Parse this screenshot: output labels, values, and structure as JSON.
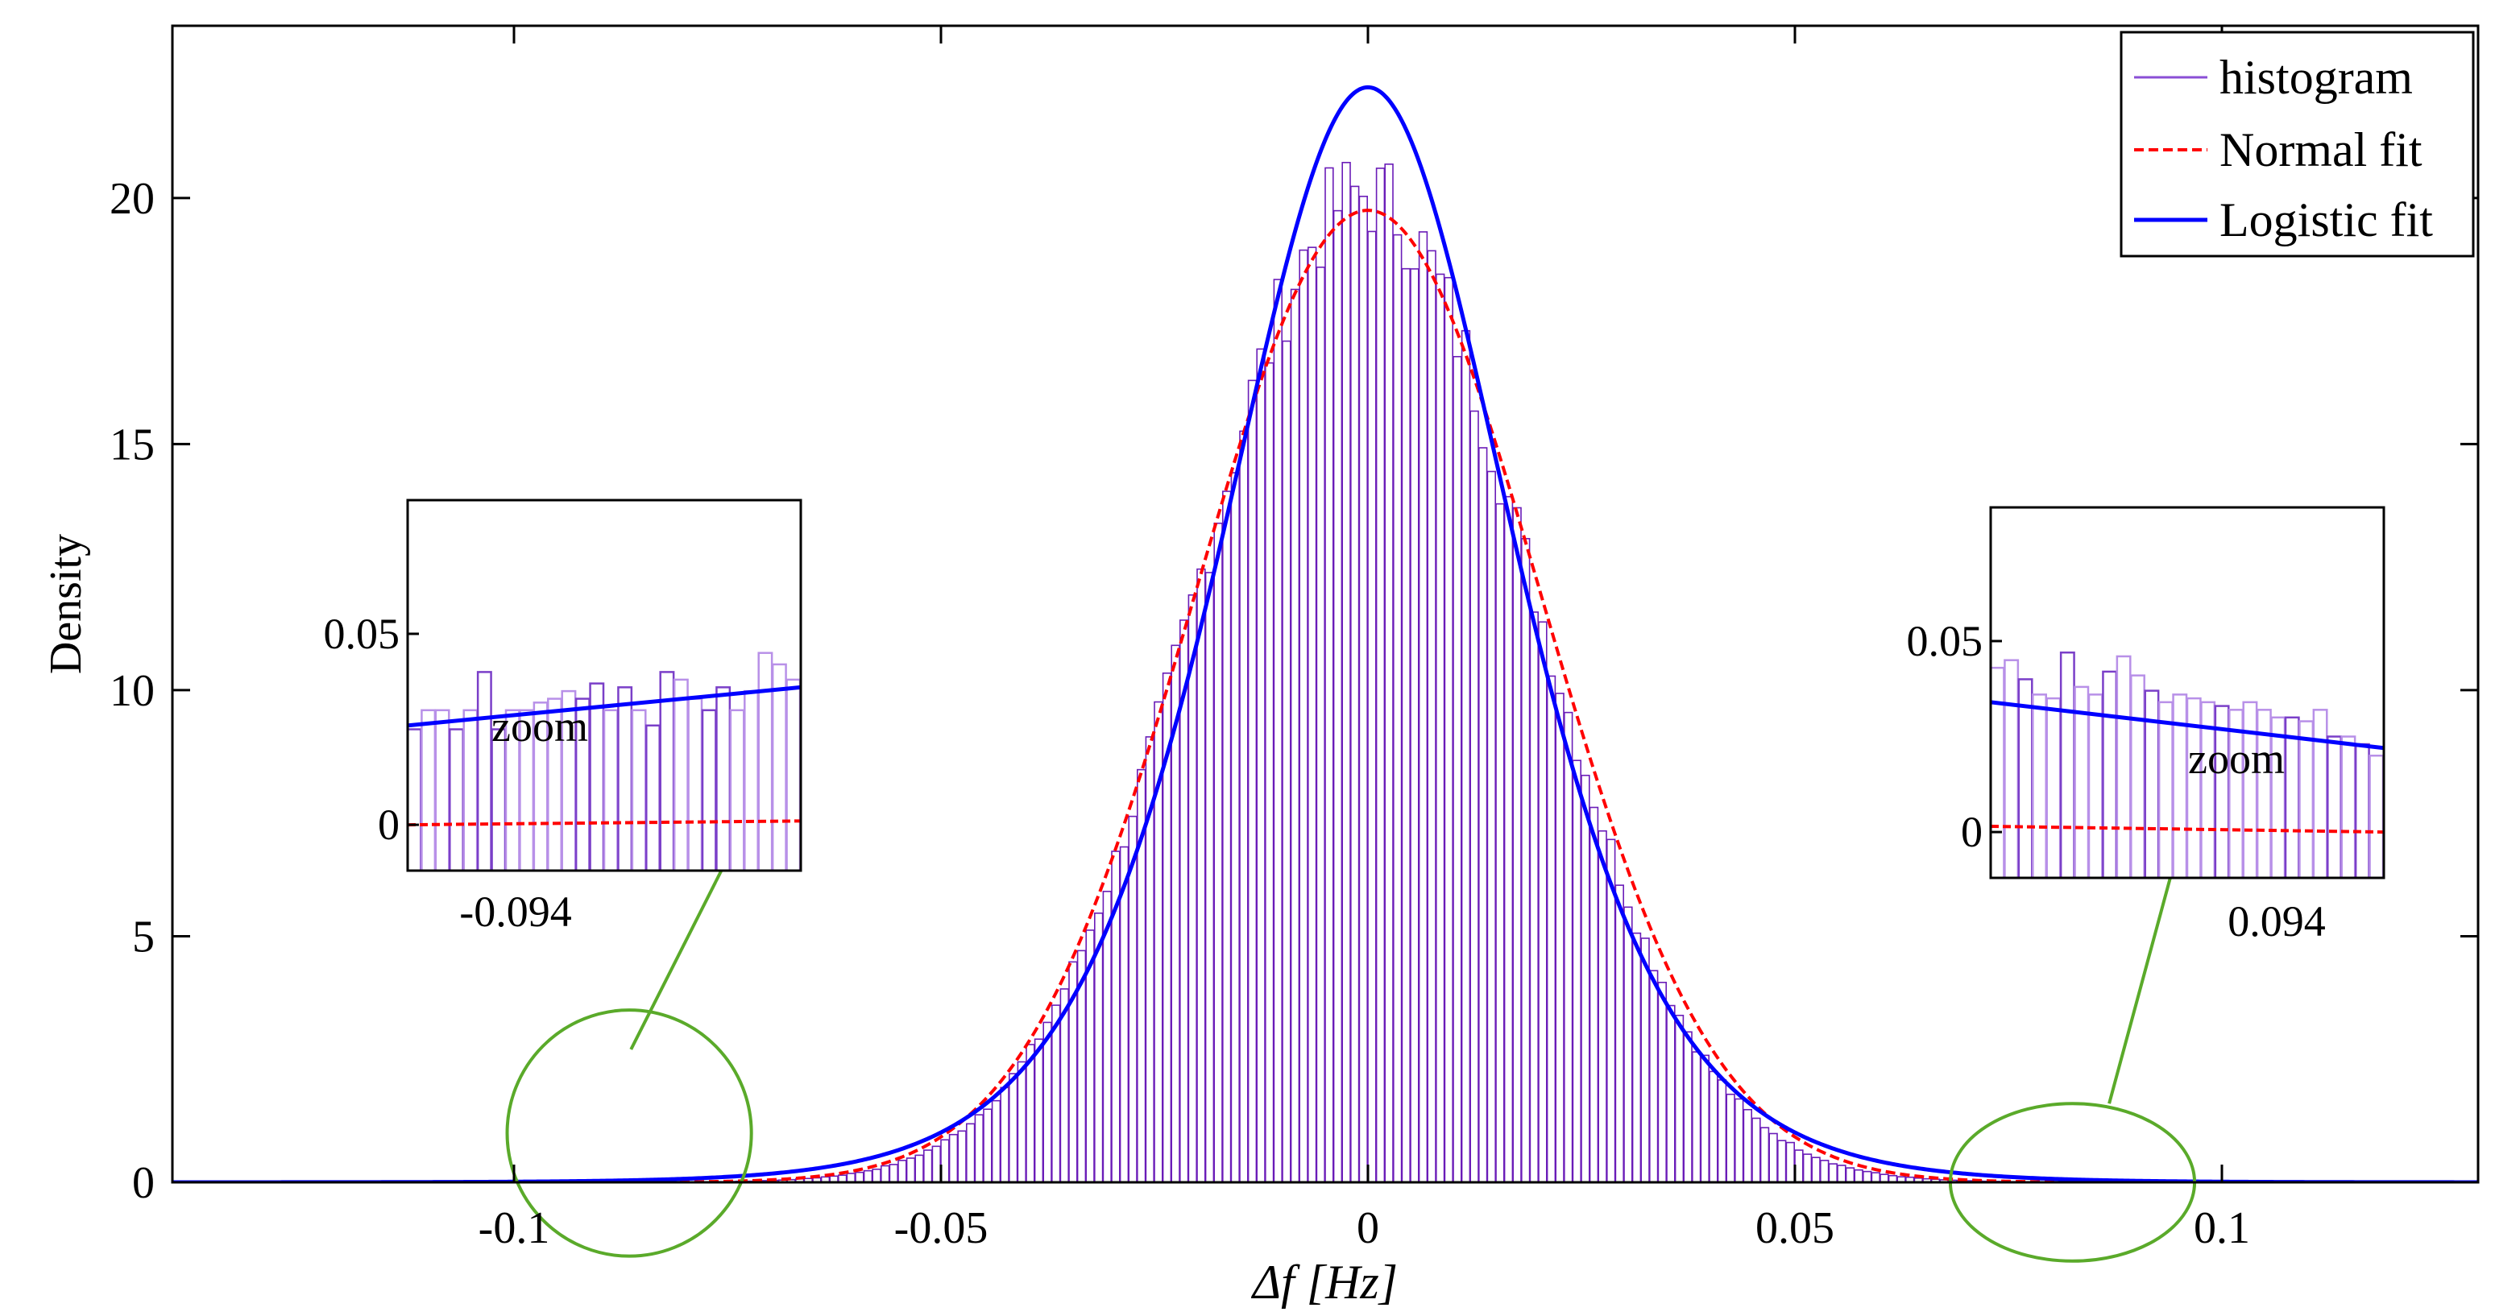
{
  "chart_data": [
    {
      "id": "main",
      "type": "bar",
      "xlabel": "Δf [Hz]",
      "ylabel": "Density",
      "xlim": [
        -0.14,
        0.13
      ],
      "ylim": [
        0,
        23.5
      ],
      "xticks": [
        -0.1,
        -0.05,
        0,
        0.05,
        0.1
      ],
      "xtick_labels": [
        "-0.1",
        "-0.05",
        "0",
        "0.05",
        "0.1"
      ],
      "yticks": [
        0,
        5,
        10,
        15,
        20
      ],
      "ytick_labels": [
        "0",
        "5",
        "10",
        "15",
        "20"
      ],
      "grid": false,
      "legend": {
        "placement": "top-right",
        "entries": [
          {
            "label": "histogram",
            "color": "#8a4fd6",
            "style": "solid-thin"
          },
          {
            "label": "Normal fit",
            "color": "#ff0000",
            "style": "dashed"
          },
          {
            "label": "Logistic fit",
            "color": "#0000ff",
            "style": "solid"
          }
        ]
      },
      "histogram": {
        "color": "#6a1cb8",
        "bin_width": 0.001,
        "x_start": -0.1,
        "x_end": 0.1,
        "mean": -0.0003,
        "peak_density": 20.3,
        "scale": 0.0195
      },
      "series": [
        {
          "name": "Normal fit",
          "kind": "normal",
          "mean": 0.0,
          "sd": 0.0202,
          "peak": 19.75,
          "color": "#ff0000",
          "dash": true
        },
        {
          "name": "Logistic fit",
          "kind": "logistic",
          "mu": 0.0,
          "s": 0.01123,
          "peak": 22.25,
          "color": "#0000ff",
          "dash": false
        }
      ],
      "annotations": [
        {
          "type": "ellipse",
          "cx": -0.0865,
          "cy": 1.0,
          "rx": 0.0143,
          "ry": 2.5,
          "color": "#5aaa2a"
        },
        {
          "type": "ellipse",
          "cx": 0.0825,
          "cy": 0.0,
          "rx": 0.0143,
          "ry": 1.6,
          "color": "#5aaa2a"
        },
        {
          "type": "arrow",
          "from": [
            -0.0863,
            2.7
          ],
          "to": [
            -0.0697,
            8.4
          ],
          "color": "#5aaa2a"
        },
        {
          "type": "arrow",
          "from": [
            0.0868,
            1.6
          ],
          "to": [
            0.096,
            7.5
          ],
          "color": "#5aaa2a"
        }
      ]
    },
    {
      "id": "inset-left",
      "type": "bar",
      "zoom_label": "zoom",
      "xtick_labels": [
        "-0.094"
      ],
      "ytick_labels": [
        "0",
        "0.05"
      ],
      "ylim": [
        -0.012,
        0.085
      ],
      "yticks": [
        0,
        0.05
      ],
      "bars": [
        0.025,
        0.03,
        0.03,
        0.025,
        0.03,
        0.04,
        0.025,
        0.03,
        0.03,
        0.032,
        0.033,
        0.035,
        0.033,
        0.037,
        0.03,
        0.036,
        0.03,
        0.026,
        0.04,
        0.038,
        0.033,
        0.03,
        0.036,
        0.03,
        0.035,
        0.045,
        0.042,
        0.038
      ],
      "bar_colors": [
        "#7a3fc8",
        "#b890e8",
        "#b890e8",
        "#7a3fc8",
        "#b890e8",
        "#7a3fc8",
        "#7a3fc8",
        "#b890e8",
        "#b890e8",
        "#b890e8",
        "#b890e8",
        "#b890e8",
        "#7a3fc8",
        "#7a3fc8",
        "#b890e8",
        "#7a3fc8",
        "#b890e8",
        "#7a3fc8",
        "#7a3fc8",
        "#b890e8",
        "#b890e8",
        "#7a3fc8",
        "#7a3fc8",
        "#b890e8",
        "#b890e8",
        "#b890e8",
        "#b890e8",
        "#b890e8"
      ],
      "logistic_line": [
        0.026,
        0.036
      ],
      "normal_line": [
        0.0,
        0.001
      ]
    },
    {
      "id": "inset-right",
      "type": "bar",
      "zoom_label": "zoom",
      "xtick_labels": [
        "0.094"
      ],
      "ytick_labels": [
        "0",
        "0.05"
      ],
      "ylim": [
        -0.012,
        0.085
      ],
      "yticks": [
        0,
        0.05
      ],
      "bars": [
        0.043,
        0.045,
        0.04,
        0.036,
        0.035,
        0.047,
        0.038,
        0.036,
        0.042,
        0.046,
        0.041,
        0.037,
        0.034,
        0.036,
        0.035,
        0.034,
        0.033,
        0.032,
        0.034,
        0.032,
        0.03,
        0.03,
        0.029,
        0.032,
        0.025,
        0.025,
        0.023,
        0.02
      ],
      "bar_colors": [
        "#b890e8",
        "#b890e8",
        "#7a3fc8",
        "#b890e8",
        "#b890e8",
        "#7a3fc8",
        "#b890e8",
        "#b890e8",
        "#7a3fc8",
        "#b890e8",
        "#b890e8",
        "#7a3fc8",
        "#b890e8",
        "#b890e8",
        "#b890e8",
        "#b890e8",
        "#7a3fc8",
        "#b890e8",
        "#b890e8",
        "#b890e8",
        "#b890e8",
        "#7a3fc8",
        "#b890e8",
        "#b890e8",
        "#7a3fc8",
        "#b890e8",
        "#7a3fc8",
        "#b890e8"
      ],
      "logistic_line": [
        0.034,
        0.022
      ],
      "normal_line": [
        0.0015,
        0.0
      ]
    }
  ]
}
